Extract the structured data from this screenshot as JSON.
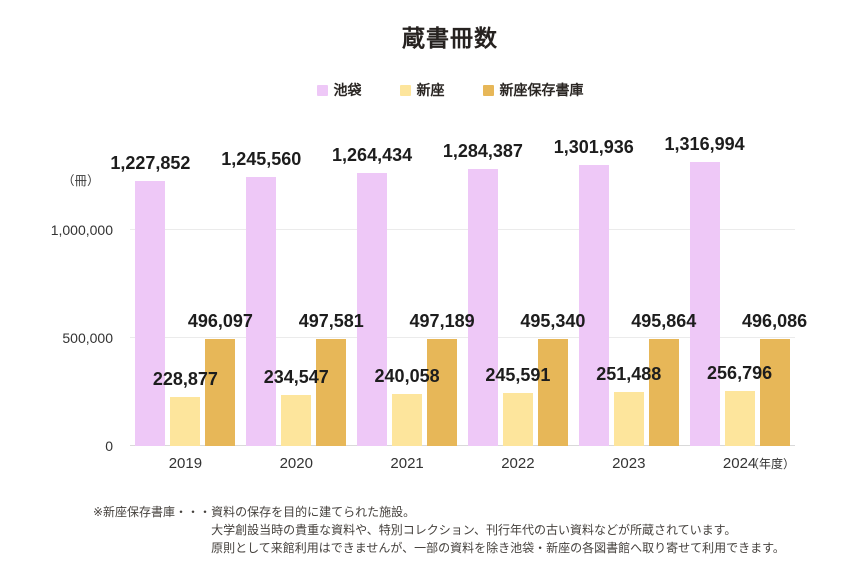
{
  "chart_data": {
    "type": "bar",
    "title": "蔵書冊数",
    "categories": [
      "2019",
      "2020",
      "2021",
      "2022",
      "2023",
      "2024"
    ],
    "series": [
      {
        "name": "池袋",
        "color": "#eec8f7",
        "values": [
          1227852,
          1245560,
          1264434,
          1284387,
          1301936,
          1316994
        ]
      },
      {
        "name": "新座",
        "color": "#fde59c",
        "values": [
          228877,
          234547,
          240058,
          245591,
          251488,
          256796
        ]
      },
      {
        "name": "新座保存書庫",
        "color": "#e7b758",
        "values": [
          496097,
          497581,
          497189,
          495340,
          495864,
          496086
        ]
      }
    ],
    "y_ticks": [
      0,
      500000,
      1000000
    ],
    "ylim": [
      0,
      1350000
    ],
    "y_unit": "（冊）",
    "x_unit": "（年度）",
    "grid": "horizontal",
    "legend_position": "top",
    "value_labels": true
  },
  "footnote": {
    "prefix": "※新座保存書庫・・・",
    "lines": [
      "資料の保存を目的に建てられた施設。",
      "大学創設当時の貴重な資料や、特別コレクション、刊行年代の古い資料などが所蔵されています。",
      "原則として来館利用はできませんが、一部の資料を除き池袋・新座の各図書館へ取り寄せて利用できます。"
    ]
  }
}
